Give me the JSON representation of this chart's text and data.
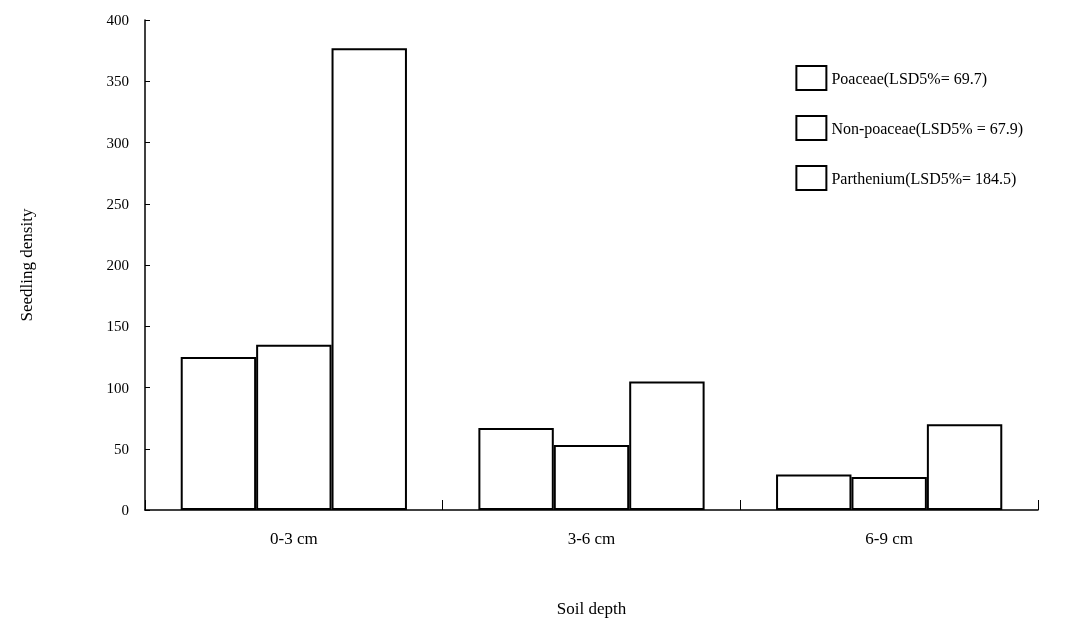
{
  "chart_data": {
    "type": "bar",
    "xlabel": "Soil depth",
    "ylabel": "Seedling density",
    "categories": [
      "0-3 cm",
      "3-6 cm",
      "6-9 cm"
    ],
    "series": [
      {
        "name": "Poaceae(LSD5%= 69.7)",
        "color": "#ffffff",
        "values": [
          125,
          67,
          29
        ]
      },
      {
        "name": "Non-poaceae(LSD5% = 67.9)",
        "color": "#ffffff",
        "values": [
          135,
          53,
          27
        ]
      },
      {
        "name": "Parthenium(LSD5%= 184.5)",
        "color": "#ffffff",
        "values": [
          377,
          105,
          70
        ]
      }
    ],
    "ylim": [
      0,
      400
    ],
    "yticks": [
      0,
      50,
      100,
      150,
      200,
      250,
      300,
      350,
      400
    ],
    "grid": false,
    "legend": "top right"
  }
}
